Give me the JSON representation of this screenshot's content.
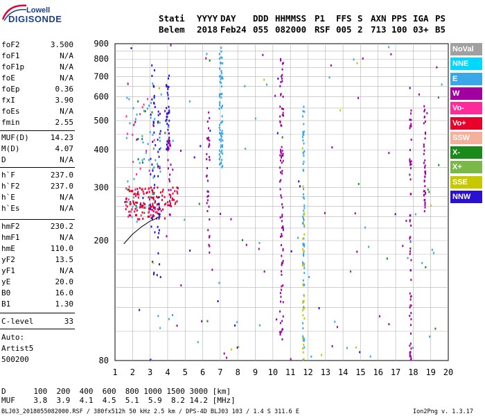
{
  "logo": {
    "line1": "Lowell",
    "line2": "DIGISONDE"
  },
  "header": {
    "labels": [
      "Stati",
      "YYYY",
      "DAY",
      "DDD",
      "HHMMSS",
      "P1",
      "FFS",
      "S",
      "AXN",
      "PPS",
      "IGA",
      "PS"
    ],
    "values": [
      "Belem",
      "2018",
      "Feb24",
      "055",
      "082000",
      "RSF",
      "005",
      "2",
      "713",
      "100",
      "03+",
      "B5"
    ]
  },
  "params_group1": [
    {
      "name": "foF2",
      "value": "3.500"
    },
    {
      "name": "foF1",
      "value": "N/A"
    },
    {
      "name": "foF1p",
      "value": "N/A"
    },
    {
      "name": "foE",
      "value": "N/A"
    },
    {
      "name": "foEp",
      "value": "0.36"
    },
    {
      "name": "fxI",
      "value": "3.90"
    },
    {
      "name": "foEs",
      "value": "N/A"
    },
    {
      "name": "fmin",
      "value": "2.55"
    }
  ],
  "params_group2": [
    {
      "name": "MUF(D)",
      "value": "14.23"
    },
    {
      "name": "M(D)",
      "value": "4.07"
    },
    {
      "name": "D",
      "value": "N/A"
    }
  ],
  "params_group3": [
    {
      "name": "h`F",
      "value": "237.0"
    },
    {
      "name": "h`F2",
      "value": "237.0"
    },
    {
      "name": "h`E",
      "value": "N/A"
    },
    {
      "name": "h`Es",
      "value": "N/A"
    }
  ],
  "params_group4": [
    {
      "name": "hmF2",
      "value": "230.2"
    },
    {
      "name": "hmF1",
      "value": "N/A"
    },
    {
      "name": "hmE",
      "value": "110.0"
    },
    {
      "name": "yF2",
      "value": "13.5"
    },
    {
      "name": "yF1",
      "value": "N/A"
    },
    {
      "name": "yE",
      "value": "20.0"
    },
    {
      "name": "B0",
      "value": "16.0"
    },
    {
      "name": "B1",
      "value": "1.30"
    }
  ],
  "clevel": {
    "name": "C-level",
    "value": "33"
  },
  "auto": {
    "line1": "Auto:",
    "line2": "Artist5",
    "line3": "500200"
  },
  "legend": [
    {
      "label": "NoVal",
      "color": "#a0a0a0"
    },
    {
      "label": "NNE",
      "color": "#00d8ff"
    },
    {
      "label": "E",
      "color": "#39a7e8"
    },
    {
      "label": "W",
      "color": "#a000a0"
    },
    {
      "label": "Vo-",
      "color": "#ff2a9a"
    },
    {
      "label": "Vo+",
      "color": "#e8002a"
    },
    {
      "label": "SSW",
      "color": "#f4b09a"
    },
    {
      "label": "X-",
      "color": "#1a8a1a"
    },
    {
      "label": "X+",
      "color": "#7ab84a"
    },
    {
      "label": "SSE",
      "color": "#c8c800"
    },
    {
      "label": "NNW",
      "color": "#2a10d0"
    }
  ],
  "footer": {
    "d_row": "D      100  200  400  600  800 1000 1500 3000 [km]",
    "muf_row": "MUF    3.8  3.9  4.1  4.5  5.1  5.9  8.2 14.2 [MHz]",
    "info": "BLJ03_2018055082000.RSF / 380fx512h 50 kHz 2.5 km / DPS-4D BLJ03 103 / 1.4 S 311.6 E",
    "version": "Ion2Png v. 1.3.17"
  },
  "chart_data": {
    "type": "scatter",
    "title": "",
    "xlabel": "",
    "ylabel": "",
    "xlim": [
      1,
      20
    ],
    "ylim": [
      80,
      900
    ],
    "y_scale": "log",
    "x_ticks": [
      1,
      2,
      3,
      4,
      5,
      6,
      7,
      8,
      9,
      10,
      11,
      12,
      13,
      14,
      15,
      16,
      17,
      18,
      19,
      20
    ],
    "y_ticks": [
      80,
      200,
      300,
      400,
      500,
      600,
      700,
      800,
      900
    ],
    "grid": true,
    "legend_placement": "right",
    "trace_F2": {
      "name": "",
      "x": [
        1.5,
        2.0,
        2.5,
        3.0,
        3.3,
        3.5
      ],
      "y": [
        195,
        210,
        222,
        232,
        236,
        240
      ]
    },
    "echo_clusters": [
      {
        "x_range": [
          1.6,
          3.9
        ],
        "y_range": [
          235,
          300
        ],
        "color": "#e8002a",
        "count": 120
      },
      {
        "x_range": [
          1.6,
          3.6
        ],
        "y_range": [
          230,
          600
        ],
        "color": "#39a7e8",
        "count": 50
      },
      {
        "x_range": [
          1.6,
          3.6
        ],
        "y_range": [
          230,
          600
        ],
        "color": "#ff2a9a",
        "count": 30
      },
      {
        "x_range": [
          1.6,
          3.6
        ],
        "y_range": [
          240,
          600
        ],
        "color": "#1a8a1a",
        "count": 12
      },
      {
        "x_range": [
          3.9,
          4.1
        ],
        "y_range": [
          400,
          720
        ],
        "color": "#2a10d0",
        "count": 40
      },
      {
        "x_range": [
          4.0,
          4.2
        ],
        "y_range": [
          240,
          460
        ],
        "color": "#a000a0",
        "count": 25
      },
      {
        "x_range": [
          4.0,
          4.6
        ],
        "y_range": [
          255,
          300
        ],
        "color": "#e8002a",
        "count": 20
      },
      {
        "x_range": [
          6.2,
          6.4
        ],
        "y_range": [
          180,
          560
        ],
        "color": "#a000a0",
        "count": 35
      },
      {
        "x_range": [
          6.95,
          7.15
        ],
        "y_range": [
          350,
          900
        ],
        "color": "#39a7e8",
        "count": 70
      },
      {
        "x_range": [
          10.4,
          10.6
        ],
        "y_range": [
          90,
          850
        ],
        "color": "#a000a0",
        "count": 90
      },
      {
        "x_range": [
          11.7,
          11.8
        ],
        "y_range": [
          80,
          600
        ],
        "color": "#39a7e8",
        "count": 70
      },
      {
        "x_range": [
          11.7,
          11.8
        ],
        "y_range": [
          80,
          320
        ],
        "color": "#c8c800",
        "count": 25
      },
      {
        "x_range": [
          17.8,
          17.9
        ],
        "y_range": [
          80,
          560
        ],
        "color": "#a000a0",
        "count": 60
      },
      {
        "x_range": [
          18.6,
          18.7
        ],
        "y_range": [
          250,
          560
        ],
        "color": "#a000a0",
        "count": 40
      },
      {
        "x_range": [
          3.0,
          3.3
        ],
        "y_range": [
          150,
          900
        ],
        "color": "#2a10d0",
        "count": 35
      },
      {
        "x_range": [
          3.4,
          3.6
        ],
        "y_range": [
          150,
          600
        ],
        "color": "#2a10d0",
        "count": 30
      },
      {
        "x_range": [
          1.0,
          20.0
        ],
        "y_range": [
          80,
          900
        ],
        "color": "#39a7e8",
        "count": 45
      },
      {
        "x_range": [
          1.0,
          20.0
        ],
        "y_range": [
          80,
          900
        ],
        "color": "#a000a0",
        "count": 45
      },
      {
        "x_range": [
          1.0,
          20.0
        ],
        "y_range": [
          80,
          900
        ],
        "color": "#1a8a1a",
        "count": 15
      },
      {
        "x_range": [
          1.0,
          20.0
        ],
        "y_range": [
          80,
          900
        ],
        "color": "#c8c800",
        "count": 12
      },
      {
        "x_range": [
          1.0,
          20.0
        ],
        "y_range": [
          80,
          900
        ],
        "color": "#2a10d0",
        "count": 20
      }
    ]
  }
}
